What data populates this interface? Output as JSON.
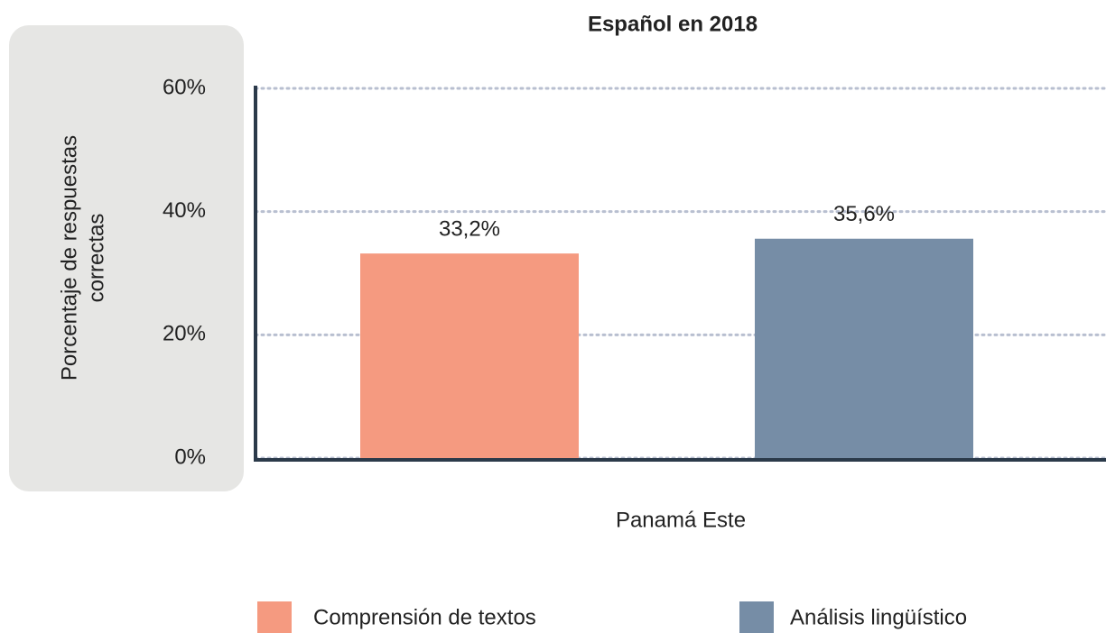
{
  "chart_data": {
    "type": "bar",
    "title": "Español en 2018",
    "ylabel": [
      "Porcentaje de respuestas",
      "correctas"
    ],
    "categories": [
      "Panamá Este"
    ],
    "series": [
      {
        "name": "Comprensión de textos",
        "color": "#f59a80",
        "values": [
          33.2
        ],
        "value_labels": [
          "33,2%"
        ]
      },
      {
        "name": "Análisis lingüístico",
        "color": "#768da6",
        "values": [
          35.6
        ],
        "value_labels": [
          "35,6%"
        ]
      }
    ],
    "ylim": [
      0,
      60
    ],
    "yticks": [
      {
        "value": 0,
        "label": "0%"
      },
      {
        "value": 20,
        "label": "20%"
      },
      {
        "value": 40,
        "label": "40%"
      },
      {
        "value": 60,
        "label": "60%"
      }
    ],
    "grid": true,
    "legend": "bottom"
  }
}
